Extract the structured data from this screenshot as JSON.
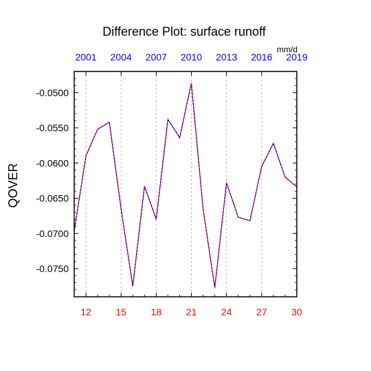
{
  "chart_data": {
    "type": "line",
    "title": "Difference Plot: surface runoff",
    "ylabel": "QOVER",
    "units": "mm/d",
    "xlim": [
      11,
      30
    ],
    "ylim": [
      -0.079,
      -0.047
    ],
    "x_ticks_bottom": [
      12,
      15,
      18,
      21,
      24,
      27,
      30
    ],
    "x_ticks_top": [
      {
        "x": 12,
        "label": "2001"
      },
      {
        "x": 15,
        "label": "2004"
      },
      {
        "x": 18,
        "label": "2007"
      },
      {
        "x": 21,
        "label": "2010"
      },
      {
        "x": 24,
        "label": "2013"
      },
      {
        "x": 27,
        "label": "2016"
      },
      {
        "x": 30,
        "label": "2019"
      }
    ],
    "y_ticks": [
      -0.05,
      -0.055,
      -0.06,
      -0.065,
      -0.07,
      -0.075
    ],
    "y_tick_labels": [
      "-0.0500",
      "-0.0550",
      "-0.0600",
      "-0.0650",
      "-0.0700",
      "-0.0750"
    ],
    "grid": "vertical dashed at top-axis ticks",
    "colors": {
      "series_a": "#ff0000",
      "series_b": "#0000cc",
      "bottom_ticks": "#ff0000",
      "top_ticks": "#0000ff",
      "grid": "#aaaaaa"
    },
    "series": [
      {
        "x": [
          11,
          12,
          13,
          14,
          15,
          16,
          17,
          18,
          19,
          20,
          21,
          22,
          23,
          24,
          25,
          26,
          27,
          28,
          29,
          30
        ],
        "values": [
          -0.0697,
          -0.059,
          -0.0552,
          -0.0542,
          -0.0665,
          -0.0775,
          -0.0633,
          -0.068,
          -0.0538,
          -0.0564,
          -0.0487,
          -0.0665,
          -0.0777,
          -0.0628,
          -0.0677,
          -0.0682,
          -0.0605,
          -0.0572,
          -0.062,
          -0.0634
        ]
      }
    ]
  }
}
